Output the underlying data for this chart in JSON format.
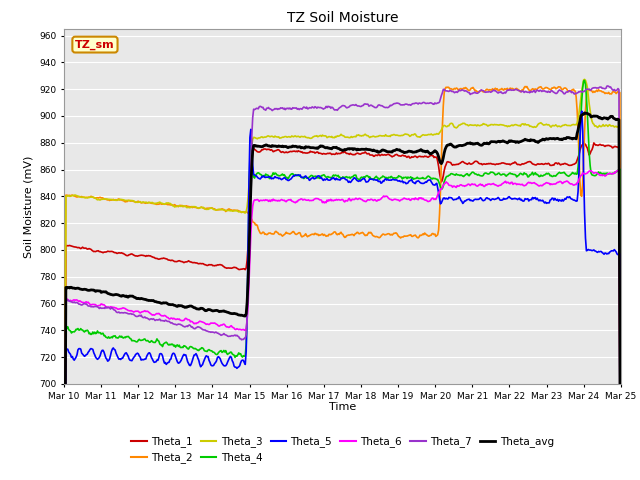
{
  "title": "TZ Soil Moisture",
  "xlabel": "Time",
  "ylabel": "Soil Moisture (mV)",
  "ylim": [
    700,
    965
  ],
  "yticks": [
    700,
    720,
    740,
    760,
    780,
    800,
    820,
    840,
    860,
    880,
    900,
    920,
    940,
    960
  ],
  "series_colors": {
    "Theta_1": "#cc0000",
    "Theta_2": "#ff8800",
    "Theta_3": "#cccc00",
    "Theta_4": "#00cc00",
    "Theta_5": "#0000ff",
    "Theta_6": "#ff00ff",
    "Theta_7": "#9933cc",
    "Theta_avg": "#000000"
  },
  "annotation_label": "TZ_sm",
  "annotation_bg": "#ffffcc",
  "annotation_border": "#cc8800",
  "annotation_text_color": "#cc0000",
  "plot_bg": "#e8e8e8"
}
